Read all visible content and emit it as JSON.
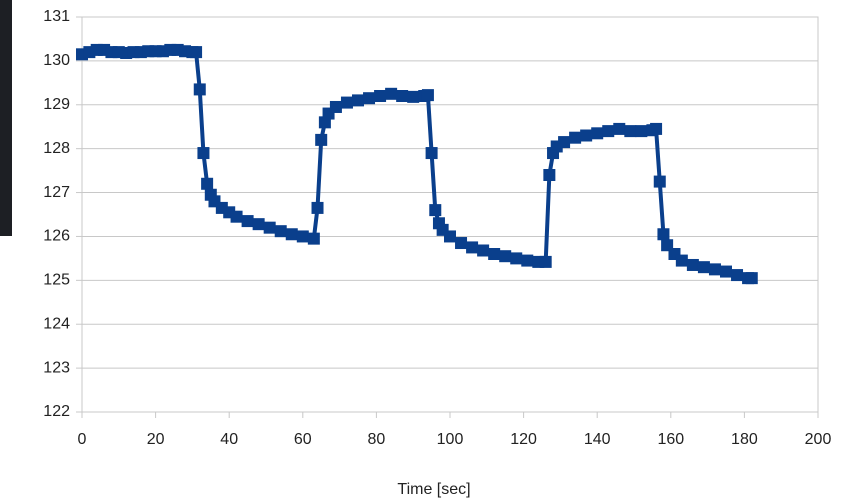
{
  "chart_data": {
    "type": "line",
    "x_label": "Time [sec]",
    "color": "#0a3f8c",
    "grid": true,
    "x": [
      0,
      2,
      4,
      6,
      8,
      10,
      12,
      14,
      16,
      18,
      20,
      22,
      24,
      26,
      28,
      30,
      31,
      32,
      33,
      34,
      35,
      36,
      38,
      40,
      42,
      45,
      48,
      51,
      54,
      57,
      60,
      63,
      64,
      65,
      66,
      67,
      69,
      72,
      75,
      78,
      81,
      84,
      87,
      90,
      93,
      94,
      95,
      96,
      97,
      98,
      100,
      103,
      106,
      109,
      112,
      115,
      118,
      121,
      124,
      126,
      127,
      128,
      129,
      131,
      134,
      137,
      140,
      143,
      146,
      149,
      152,
      155,
      156,
      157,
      158,
      159,
      161,
      163,
      166,
      169,
      172,
      175,
      178,
      181,
      182
    ],
    "values": [
      130.15,
      130.2,
      130.25,
      130.25,
      130.2,
      130.2,
      130.18,
      130.2,
      130.2,
      130.22,
      130.22,
      130.22,
      130.25,
      130.25,
      130.22,
      130.2,
      130.2,
      129.35,
      127.9,
      127.2,
      126.95,
      126.8,
      126.65,
      126.55,
      126.45,
      126.35,
      126.28,
      126.2,
      126.12,
      126.05,
      126.0,
      125.95,
      126.65,
      128.2,
      128.6,
      128.8,
      128.95,
      129.05,
      129.1,
      129.15,
      129.2,
      129.25,
      129.2,
      129.18,
      129.2,
      129.22,
      127.9,
      126.6,
      126.3,
      126.15,
      126.0,
      125.85,
      125.75,
      125.68,
      125.6,
      125.55,
      125.5,
      125.45,
      125.42,
      125.42,
      127.4,
      127.9,
      128.05,
      128.15,
      128.25,
      128.3,
      128.35,
      128.4,
      128.45,
      128.4,
      128.4,
      128.42,
      128.45,
      127.25,
      126.05,
      125.8,
      125.6,
      125.45,
      125.35,
      125.3,
      125.25,
      125.2,
      125.12,
      125.05,
      125.05
    ],
    "xlim": [
      0,
      200
    ],
    "xticks": [
      0,
      20,
      40,
      60,
      80,
      100,
      120,
      140,
      160,
      180,
      200
    ],
    "ylim": [
      122,
      131
    ],
    "yticks": [
      122,
      123,
      124,
      125,
      126,
      127,
      128,
      129,
      130,
      131
    ]
  }
}
